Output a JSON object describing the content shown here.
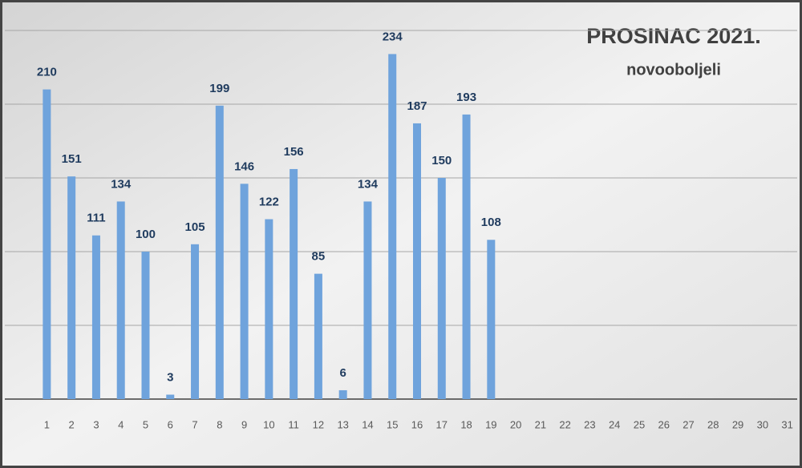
{
  "chart_data": {
    "type": "bar",
    "title": "PROSINAC 2021.",
    "subtitle": "novooboljeli",
    "categories": [
      "1",
      "2",
      "3",
      "4",
      "5",
      "6",
      "7",
      "8",
      "9",
      "10",
      "11",
      "12",
      "13",
      "14",
      "15",
      "16",
      "17",
      "18",
      "19",
      "20",
      "21",
      "22",
      "23",
      "24",
      "25",
      "26",
      "27",
      "28",
      "29",
      "30",
      "31"
    ],
    "values": [
      210,
      151,
      111,
      134,
      100,
      3,
      105,
      199,
      146,
      122,
      156,
      85,
      6,
      134,
      234,
      187,
      150,
      193,
      108,
      null,
      null,
      null,
      null,
      null,
      null,
      null,
      null,
      null,
      null,
      null,
      null
    ],
    "color": "#6fa3dc",
    "ylim": [
      0,
      250
    ],
    "yticks": [
      0,
      50,
      100,
      150,
      200,
      250
    ],
    "grid": true
  }
}
